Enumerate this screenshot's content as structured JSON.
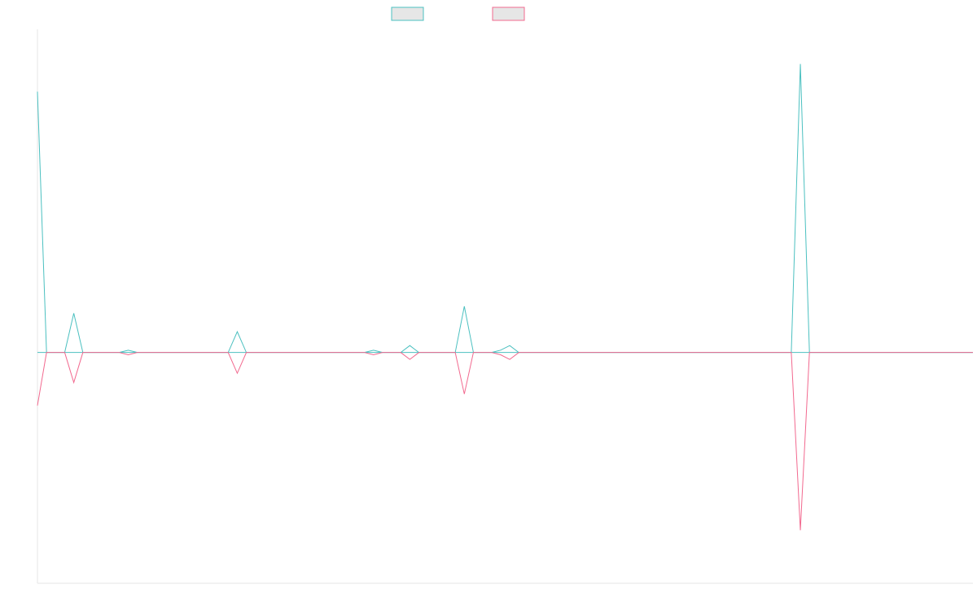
{
  "chart_data": {
    "type": "line",
    "title": "",
    "xlabel": "",
    "ylabel": "",
    "legend_position": "top-center",
    "grid": false,
    "x_count": 104,
    "ylim": [
      -100,
      140
    ],
    "baseline": 0,
    "series": [
      {
        "color": "#4bc0c0",
        "fill": "#e6e6e6",
        "points": [
          [
            0,
            113
          ],
          [
            1,
            0
          ],
          [
            2,
            0
          ],
          [
            3,
            0
          ],
          [
            4,
            17
          ],
          [
            5,
            0
          ],
          [
            6,
            0
          ],
          [
            7,
            0
          ],
          [
            8,
            0
          ],
          [
            9,
            0
          ],
          [
            10,
            1
          ],
          [
            11,
            0
          ],
          [
            12,
            0
          ],
          [
            13,
            0
          ],
          [
            14,
            0
          ],
          [
            15,
            0
          ],
          [
            16,
            0
          ],
          [
            17,
            0
          ],
          [
            18,
            0
          ],
          [
            19,
            0
          ],
          [
            20,
            0
          ],
          [
            21,
            0
          ],
          [
            22,
            9
          ],
          [
            23,
            0
          ],
          [
            24,
            0
          ],
          [
            25,
            0
          ],
          [
            26,
            0
          ],
          [
            27,
            0
          ],
          [
            28,
            0
          ],
          [
            29,
            0
          ],
          [
            30,
            0
          ],
          [
            31,
            0
          ],
          [
            32,
            0
          ],
          [
            33,
            0
          ],
          [
            34,
            0
          ],
          [
            35,
            0
          ],
          [
            36,
            0
          ],
          [
            37,
            1
          ],
          [
            38,
            0
          ],
          [
            39,
            0
          ],
          [
            40,
            0
          ],
          [
            41,
            3
          ],
          [
            42,
            0
          ],
          [
            43,
            0
          ],
          [
            44,
            0
          ],
          [
            45,
            0
          ],
          [
            46,
            0
          ],
          [
            47,
            20
          ],
          [
            48,
            0
          ],
          [
            49,
            0
          ],
          [
            50,
            0
          ],
          [
            51,
            1
          ],
          [
            52,
            3
          ],
          [
            53,
            0
          ],
          [
            54,
            0
          ],
          [
            55,
            0
          ],
          [
            56,
            0
          ],
          [
            57,
            0
          ],
          [
            58,
            0
          ],
          [
            59,
            0
          ],
          [
            60,
            0
          ],
          [
            61,
            0
          ],
          [
            62,
            0
          ],
          [
            63,
            0
          ],
          [
            64,
            0
          ],
          [
            65,
            0
          ],
          [
            66,
            0
          ],
          [
            67,
            0
          ],
          [
            68,
            0
          ],
          [
            69,
            0
          ],
          [
            70,
            0
          ],
          [
            71,
            0
          ],
          [
            72,
            0
          ],
          [
            73,
            0
          ],
          [
            74,
            0
          ],
          [
            75,
            0
          ],
          [
            76,
            0
          ],
          [
            77,
            0
          ],
          [
            78,
            0
          ],
          [
            79,
            0
          ],
          [
            80,
            0
          ],
          [
            81,
            0
          ],
          [
            82,
            0
          ],
          [
            83,
            0
          ],
          [
            84,
            125
          ],
          [
            85,
            0
          ],
          [
            86,
            0
          ],
          [
            87,
            0
          ],
          [
            88,
            0
          ],
          [
            89,
            0
          ],
          [
            90,
            0
          ],
          [
            91,
            0
          ],
          [
            92,
            0
          ],
          [
            93,
            0
          ],
          [
            94,
            0
          ],
          [
            95,
            0
          ],
          [
            96,
            0
          ],
          [
            97,
            0
          ],
          [
            98,
            0
          ],
          [
            99,
            0
          ],
          [
            100,
            0
          ],
          [
            101,
            0
          ],
          [
            102,
            0
          ],
          [
            103,
            0
          ]
        ]
      },
      {
        "color": "#f2698f",
        "fill": "#e6e6e6",
        "points": [
          [
            0,
            -23
          ],
          [
            1,
            0
          ],
          [
            2,
            0
          ],
          [
            3,
            0
          ],
          [
            4,
            -13
          ],
          [
            5,
            0
          ],
          [
            6,
            0
          ],
          [
            7,
            0
          ],
          [
            8,
            0
          ],
          [
            9,
            0
          ],
          [
            10,
            -1
          ],
          [
            11,
            0
          ],
          [
            12,
            0
          ],
          [
            13,
            0
          ],
          [
            14,
            0
          ],
          [
            15,
            0
          ],
          [
            16,
            0
          ],
          [
            17,
            0
          ],
          [
            18,
            0
          ],
          [
            19,
            0
          ],
          [
            20,
            0
          ],
          [
            21,
            0
          ],
          [
            22,
            -9
          ],
          [
            23,
            0
          ],
          [
            24,
            0
          ],
          [
            25,
            0
          ],
          [
            26,
            0
          ],
          [
            27,
            0
          ],
          [
            28,
            0
          ],
          [
            29,
            0
          ],
          [
            30,
            0
          ],
          [
            31,
            0
          ],
          [
            32,
            0
          ],
          [
            33,
            0
          ],
          [
            34,
            0
          ],
          [
            35,
            0
          ],
          [
            36,
            0
          ],
          [
            37,
            -1
          ],
          [
            38,
            0
          ],
          [
            39,
            0
          ],
          [
            40,
            0
          ],
          [
            41,
            -3
          ],
          [
            42,
            0
          ],
          [
            43,
            0
          ],
          [
            44,
            0
          ],
          [
            45,
            0
          ],
          [
            46,
            0
          ],
          [
            47,
            -18
          ],
          [
            48,
            0
          ],
          [
            49,
            0
          ],
          [
            50,
            0
          ],
          [
            51,
            -1
          ],
          [
            52,
            -3
          ],
          [
            53,
            0
          ],
          [
            54,
            0
          ],
          [
            55,
            0
          ],
          [
            56,
            0
          ],
          [
            57,
            0
          ],
          [
            58,
            0
          ],
          [
            59,
            0
          ],
          [
            60,
            0
          ],
          [
            61,
            0
          ],
          [
            62,
            0
          ],
          [
            63,
            0
          ],
          [
            64,
            0
          ],
          [
            65,
            0
          ],
          [
            66,
            0
          ],
          [
            67,
            0
          ],
          [
            68,
            0
          ],
          [
            69,
            0
          ],
          [
            70,
            0
          ],
          [
            71,
            0
          ],
          [
            72,
            0
          ],
          [
            73,
            0
          ],
          [
            74,
            0
          ],
          [
            75,
            0
          ],
          [
            76,
            0
          ],
          [
            77,
            0
          ],
          [
            78,
            0
          ],
          [
            79,
            0
          ],
          [
            80,
            0
          ],
          [
            81,
            0
          ],
          [
            82,
            0
          ],
          [
            83,
            0
          ],
          [
            84,
            -77
          ],
          [
            85,
            0
          ],
          [
            86,
            0
          ],
          [
            87,
            0
          ],
          [
            88,
            0
          ],
          [
            89,
            0
          ],
          [
            90,
            0
          ],
          [
            91,
            0
          ],
          [
            92,
            0
          ],
          [
            93,
            0
          ],
          [
            94,
            0
          ],
          [
            95,
            0
          ],
          [
            96,
            0
          ],
          [
            97,
            0
          ],
          [
            98,
            0
          ],
          [
            99,
            0
          ],
          [
            100,
            0
          ],
          [
            101,
            0
          ],
          [
            102,
            0
          ],
          [
            103,
            0
          ]
        ]
      }
    ]
  }
}
